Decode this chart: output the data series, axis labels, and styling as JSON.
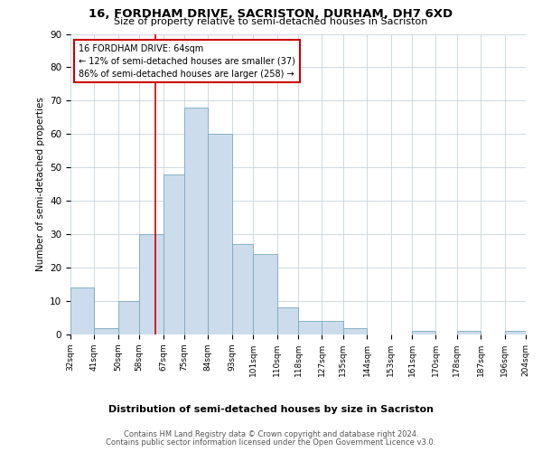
{
  "title": "16, FORDHAM DRIVE, SACRISTON, DURHAM, DH7 6XD",
  "subtitle": "Size of property relative to semi-detached houses in Sacriston",
  "xlabel": "Distribution of semi-detached houses by size in Sacriston",
  "ylabel": "Number of semi-detached properties",
  "bin_edges": [
    32,
    41,
    50,
    58,
    67,
    75,
    84,
    93,
    101,
    110,
    118,
    127,
    135,
    144,
    153,
    161,
    170,
    178,
    187,
    196,
    204
  ],
  "bin_labels": [
    "32sqm",
    "41sqm",
    "50sqm",
    "58sqm",
    "67sqm",
    "75sqm",
    "84sqm",
    "93sqm",
    "101sqm",
    "110sqm",
    "118sqm",
    "127sqm",
    "135sqm",
    "144sqm",
    "153sqm",
    "161sqm",
    "170sqm",
    "178sqm",
    "187sqm",
    "196sqm",
    "204sqm"
  ],
  "counts": [
    14,
    2,
    10,
    30,
    48,
    68,
    60,
    27,
    24,
    8,
    4,
    4,
    2,
    0,
    0,
    1,
    0,
    1,
    0,
    1
  ],
  "bar_color": "#ccdcec",
  "bar_edgecolor": "#7aaabe",
  "vline_x": 64,
  "vline_color": "#cc0000",
  "annotation_title": "16 FORDHAM DRIVE: 64sqm",
  "annotation_line1": "← 12% of semi-detached houses are smaller (37)",
  "annotation_line2": "86% of semi-detached houses are larger (258) →",
  "annotation_box_facecolor": "#ffffff",
  "annotation_box_edgecolor": "#cc0000",
  "ylim": [
    0,
    90
  ],
  "yticks": [
    0,
    10,
    20,
    30,
    40,
    50,
    60,
    70,
    80,
    90
  ],
  "footer1": "Contains HM Land Registry data © Crown copyright and database right 2024.",
  "footer2": "Contains public sector information licensed under the Open Government Licence v3.0.",
  "background_color": "#ffffff",
  "grid_color": "#c8d4dc"
}
